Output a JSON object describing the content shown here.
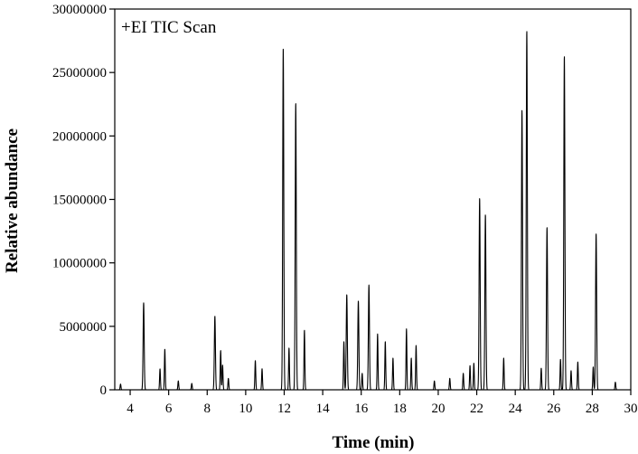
{
  "chart_data": {
    "type": "line",
    "annotation": "+EI TIC Scan",
    "xlabel": "Time (min)",
    "ylabel": "Relative abundance",
    "xlim": [
      3.2,
      30
    ],
    "ylim": [
      0,
      30000000
    ],
    "x_ticks": [
      "4",
      "6",
      "8",
      "10",
      "12",
      "14",
      "16",
      "18",
      "20",
      "22",
      "24",
      "26",
      "28",
      "30"
    ],
    "y_ticks": [
      "0",
      "5000000",
      "10000000",
      "15000000",
      "20000000",
      "25000000",
      "30000000"
    ],
    "grid": false,
    "legend": "none",
    "series": [
      {
        "peaks": [
          {
            "x": 3.5,
            "y": 450000
          },
          {
            "x": 4.7,
            "y": 6850000
          },
          {
            "x": 5.55,
            "y": 1650000
          },
          {
            "x": 5.8,
            "y": 3200000
          },
          {
            "x": 6.5,
            "y": 700000
          },
          {
            "x": 7.2,
            "y": 500000
          },
          {
            "x": 8.4,
            "y": 5800000
          },
          {
            "x": 8.7,
            "y": 3100000
          },
          {
            "x": 8.8,
            "y": 1950000
          },
          {
            "x": 9.1,
            "y": 900000
          },
          {
            "x": 10.5,
            "y": 2300000
          },
          {
            "x": 10.85,
            "y": 1650000
          },
          {
            "x": 11.95,
            "y": 26900000
          },
          {
            "x": 12.25,
            "y": 3300000
          },
          {
            "x": 12.6,
            "y": 22600000
          },
          {
            "x": 13.05,
            "y": 4700000
          },
          {
            "x": 15.1,
            "y": 3800000
          },
          {
            "x": 15.25,
            "y": 7500000
          },
          {
            "x": 15.85,
            "y": 7000000
          },
          {
            "x": 16.05,
            "y": 1300000
          },
          {
            "x": 16.4,
            "y": 8250000
          },
          {
            "x": 16.85,
            "y": 4400000
          },
          {
            "x": 17.25,
            "y": 3800000
          },
          {
            "x": 17.65,
            "y": 2500000
          },
          {
            "x": 18.35,
            "y": 4800000
          },
          {
            "x": 18.6,
            "y": 2500000
          },
          {
            "x": 18.85,
            "y": 3500000
          },
          {
            "x": 19.8,
            "y": 700000
          },
          {
            "x": 20.6,
            "y": 900000
          },
          {
            "x": 21.3,
            "y": 1300000
          },
          {
            "x": 21.65,
            "y": 1900000
          },
          {
            "x": 21.85,
            "y": 2100000
          },
          {
            "x": 22.15,
            "y": 15100000
          },
          {
            "x": 22.45,
            "y": 13800000
          },
          {
            "x": 23.4,
            "y": 2500000
          },
          {
            "x": 24.35,
            "y": 22000000
          },
          {
            "x": 24.6,
            "y": 28300000
          },
          {
            "x": 25.35,
            "y": 1700000
          },
          {
            "x": 25.65,
            "y": 12800000
          },
          {
            "x": 26.35,
            "y": 2400000
          },
          {
            "x": 26.55,
            "y": 26300000
          },
          {
            "x": 26.9,
            "y": 1500000
          },
          {
            "x": 27.25,
            "y": 2200000
          },
          {
            "x": 28.05,
            "y": 1800000
          },
          {
            "x": 28.2,
            "y": 12300000
          },
          {
            "x": 29.2,
            "y": 600000
          }
        ]
      }
    ]
  },
  "colors": {
    "trace": "#000000",
    "axis": "#000000"
  }
}
